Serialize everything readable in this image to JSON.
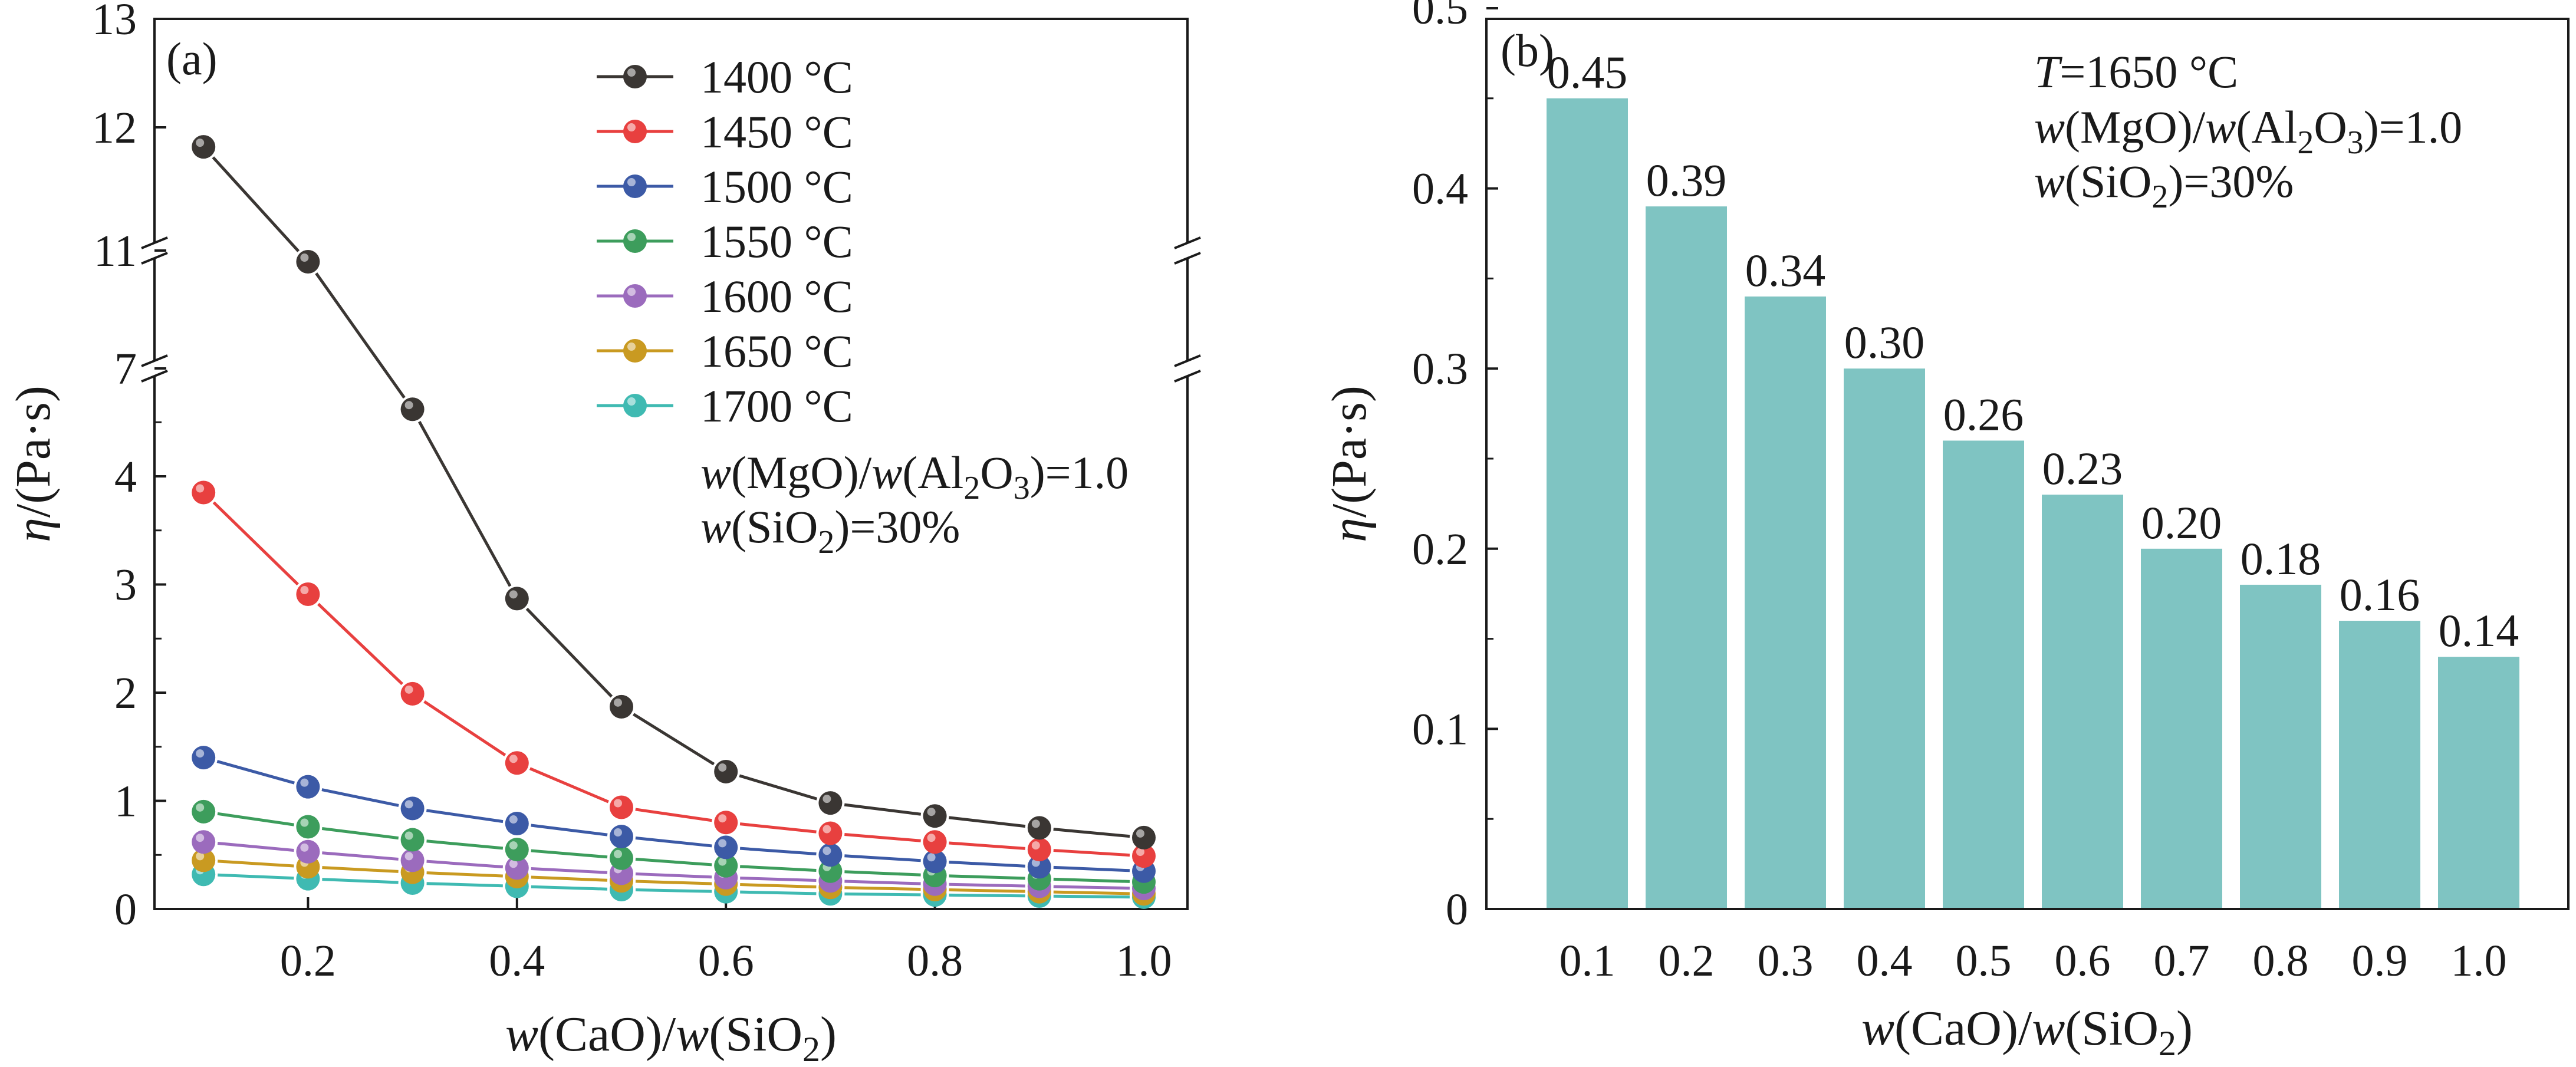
{
  "chart_data": [
    {
      "panel": "(a)",
      "type": "line",
      "x": [
        0.1,
        0.2,
        0.3,
        0.4,
        0.5,
        0.6,
        0.7,
        0.8,
        0.9,
        1.0
      ],
      "x_ticks": [
        "0.2",
        "0.4",
        "0.6",
        "0.8",
        "1.0"
      ],
      "y_ticks_lower": [
        "0",
        "1",
        "2",
        "3",
        "4"
      ],
      "y_ticks_upper": [
        "7",
        "11",
        "12",
        "13"
      ],
      "xlabel": {
        "w1": "w",
        "a": "(CaO)/",
        "w2": "w",
        "b": "(SiO",
        "sub": "2",
        "c": ")"
      },
      "ylabel": {
        "sym": "η",
        "unit": "/(Pa·s)"
      },
      "ylim": [
        0,
        13
      ],
      "y_axis_break": [
        [
          4.95,
          7
        ],
        [
          7,
          11
        ]
      ],
      "grid": false,
      "legend_position": "top-right",
      "annotations": [
        {
          "w1": "w",
          "a": "(MgO)/",
          "w2": "w",
          "b": "(Al",
          "sub": "2",
          "c": "O",
          "sub2": "3",
          "d": ")=1.0"
        },
        {
          "w1": "w",
          "a": "(SiO",
          "sub": "2",
          "b": ")=30%"
        }
      ],
      "series": [
        {
          "name": "1400 °C",
          "color": "#3a3633",
          "values": [
            11.82,
            10.62,
            4.62,
            2.87,
            1.87,
            1.27,
            0.98,
            0.86,
            0.75,
            0.66
          ]
        },
        {
          "name": "1450 °C",
          "color": "#e8403f",
          "values": [
            3.85,
            2.91,
            1.99,
            1.35,
            0.94,
            0.8,
            0.7,
            0.62,
            0.55,
            0.49
          ]
        },
        {
          "name": "1500 °C",
          "color": "#3c5aa6",
          "values": [
            1.4,
            1.13,
            0.93,
            0.79,
            0.67,
            0.57,
            0.5,
            0.44,
            0.39,
            0.35
          ]
        },
        {
          "name": "1550 °C",
          "color": "#3d9d5c",
          "values": [
            0.9,
            0.76,
            0.64,
            0.55,
            0.47,
            0.4,
            0.35,
            0.31,
            0.28,
            0.25
          ]
        },
        {
          "name": "1600 °C",
          "color": "#9b6bbd",
          "values": [
            0.62,
            0.53,
            0.45,
            0.38,
            0.33,
            0.29,
            0.26,
            0.23,
            0.21,
            0.19
          ]
        },
        {
          "name": "1650 °C",
          "color": "#c99a21",
          "values": [
            0.45,
            0.39,
            0.34,
            0.3,
            0.26,
            0.23,
            0.2,
            0.18,
            0.16,
            0.14
          ]
        },
        {
          "name": "1700 °C",
          "color": "#3fbab2",
          "values": [
            0.32,
            0.28,
            0.24,
            0.21,
            0.18,
            0.16,
            0.14,
            0.13,
            0.12,
            0.11
          ]
        }
      ]
    },
    {
      "panel": "(b)",
      "type": "bar",
      "categories": [
        "0.1",
        "0.2",
        "0.3",
        "0.4",
        "0.5",
        "0.6",
        "0.7",
        "0.8",
        "0.9",
        "1.0"
      ],
      "values": [
        0.45,
        0.39,
        0.34,
        0.3,
        0.26,
        0.23,
        0.2,
        0.18,
        0.16,
        0.14
      ],
      "value_labels": [
        "0.45",
        "0.39",
        "0.34",
        "0.30",
        "0.26",
        "0.23",
        "0.20",
        "0.18",
        "0.16",
        "0.14"
      ],
      "y_ticks": [
        "0",
        "0.1",
        "0.2",
        "0.3",
        "0.4",
        "0.5"
      ],
      "xlabel": {
        "w1": "w",
        "a": "(CaO)/",
        "w2": "w",
        "b": "(SiO",
        "sub": "2",
        "c": ")"
      },
      "ylabel": {
        "sym": "η",
        "unit": "/(Pa·s)"
      },
      "ylim": [
        0,
        0.5
      ],
      "bar_color": "#7fc4c2",
      "grid": false,
      "annotations": [
        {
          "T": "T",
          "a": "=1650 °C"
        },
        {
          "w1": "w",
          "a": "(MgO)/",
          "w2": "w",
          "b": "(Al",
          "sub": "2",
          "c": "O",
          "sub2": "3",
          "d": ")=1.0"
        },
        {
          "w1": "w",
          "a": "(SiO",
          "sub": "2",
          "b": ")=30%"
        }
      ]
    }
  ]
}
